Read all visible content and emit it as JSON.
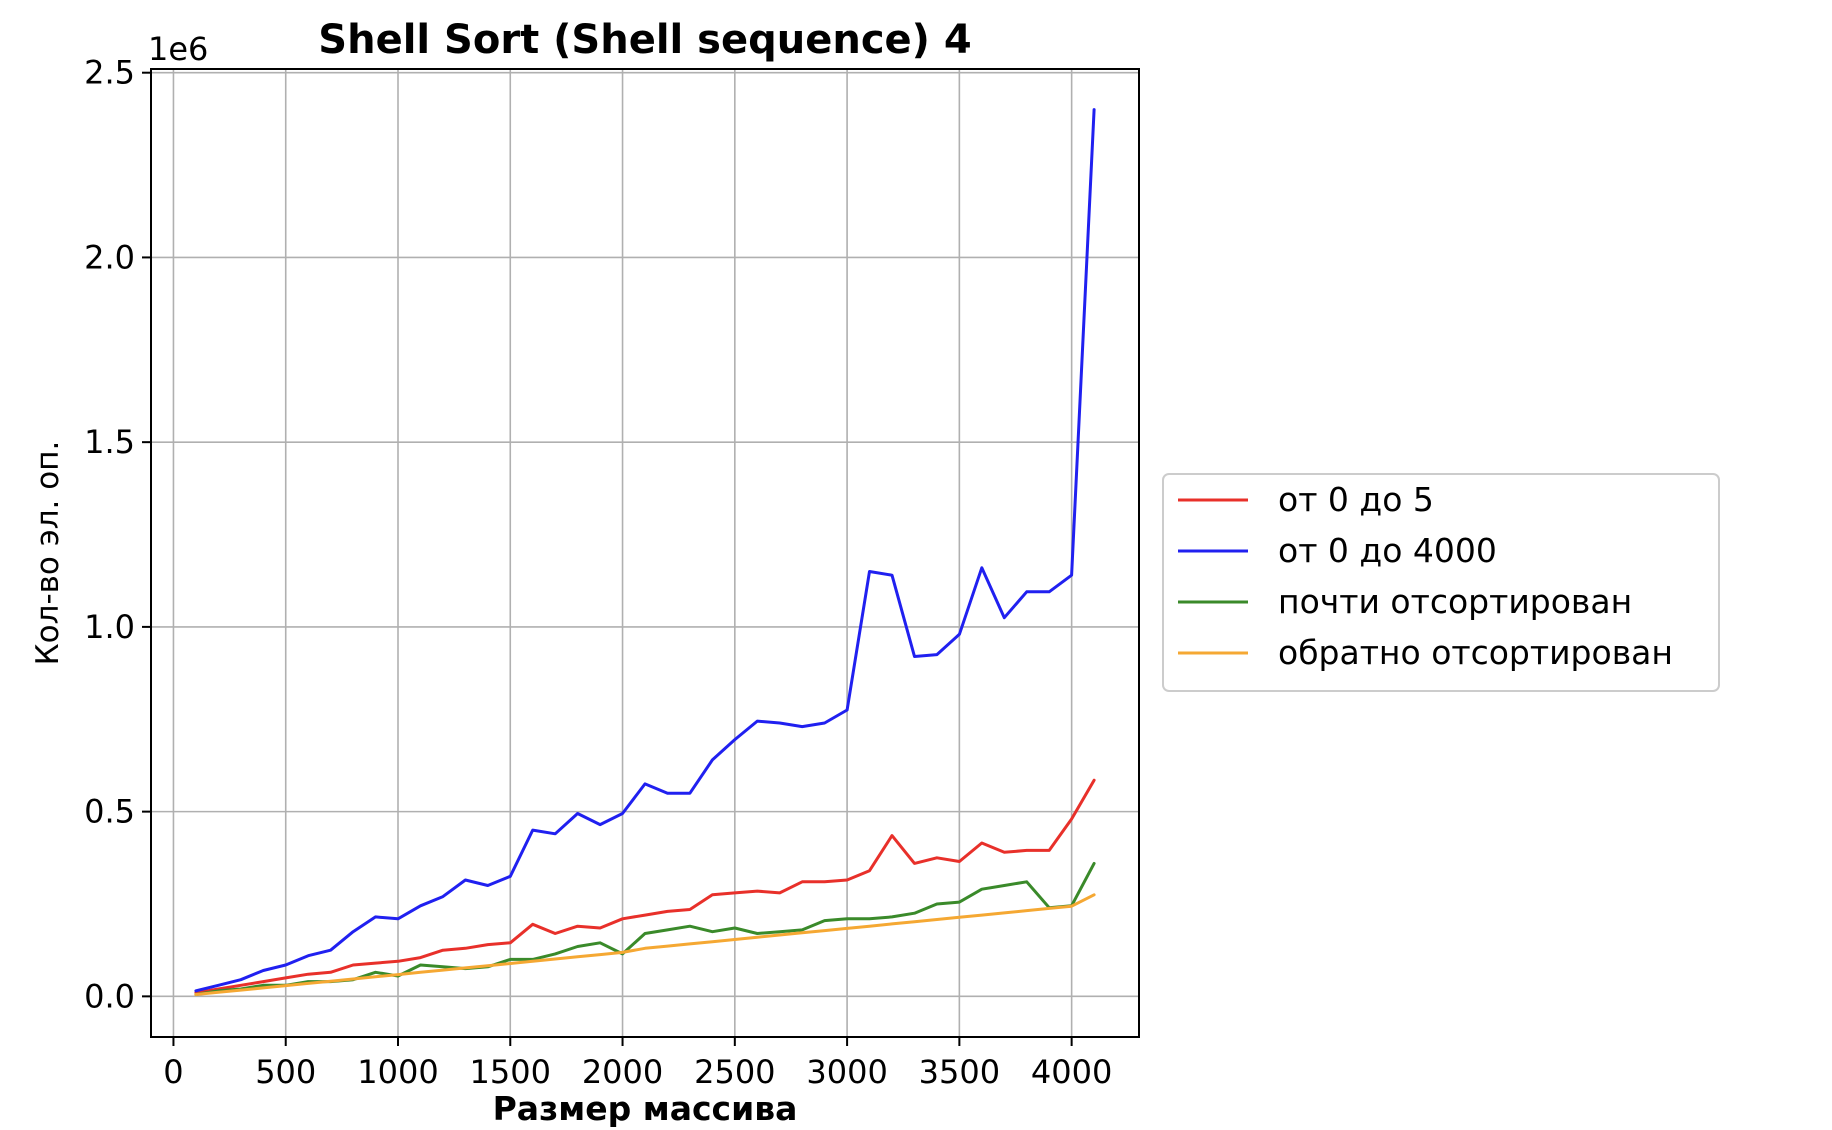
{
  "chart_data": {
    "type": "line",
    "title": "Shell Sort (Shell sequence) 4",
    "xlabel": "Размер массива",
    "ylabel": "Кол-во эл. оп.",
    "offset_text": "1e6",
    "xlim": [
      -100,
      4300
    ],
    "ylim": [
      -0.11,
      2.51
    ],
    "x_ticks": [
      0,
      500,
      1000,
      1500,
      2000,
      2500,
      3000,
      3500,
      4000
    ],
    "x_tick_labels": [
      "0",
      "500",
      "1000",
      "1500",
      "2000",
      "2500",
      "3000",
      "3500",
      "4000"
    ],
    "y_ticks": [
      0.0,
      0.5,
      1.0,
      1.5,
      2.0,
      2.5
    ],
    "y_tick_labels": [
      "0.0",
      "0.5",
      "1.0",
      "1.5",
      "2.0",
      "2.5"
    ],
    "grid": true,
    "legend_position": "outside-right",
    "x": [
      100,
      200,
      300,
      400,
      500,
      600,
      700,
      800,
      900,
      1000,
      1100,
      1200,
      1300,
      1400,
      1500,
      1600,
      1700,
      1800,
      1900,
      2000,
      2100,
      2200,
      2300,
      2400,
      2500,
      2600,
      2700,
      2800,
      2900,
      3000,
      3100,
      3200,
      3300,
      3400,
      3500,
      3600,
      3700,
      3800,
      3900,
      4000,
      4100
    ],
    "series": [
      {
        "name": "от 0 до 5",
        "color": "#e8302a",
        "values": [
          0.01,
          0.02,
          0.03,
          0.04,
          0.05,
          0.06,
          0.065,
          0.085,
          0.09,
          0.095,
          0.105,
          0.125,
          0.13,
          0.14,
          0.145,
          0.195,
          0.17,
          0.19,
          0.185,
          0.21,
          0.22,
          0.23,
          0.235,
          0.275,
          0.28,
          0.285,
          0.28,
          0.31,
          0.31,
          0.315,
          0.34,
          0.435,
          0.36,
          0.375,
          0.365,
          0.415,
          0.39,
          0.395,
          0.395,
          0.48,
          0.585
        ]
      },
      {
        "name": "от 0 до 4000",
        "color": "#2020f0",
        "values": [
          0.015,
          0.03,
          0.045,
          0.07,
          0.085,
          0.11,
          0.125,
          0.175,
          0.215,
          0.21,
          0.245,
          0.27,
          0.315,
          0.3,
          0.325,
          0.45,
          0.44,
          0.495,
          0.465,
          0.495,
          0.575,
          0.55,
          0.55,
          0.64,
          0.695,
          0.745,
          0.74,
          0.73,
          0.74,
          0.775,
          1.15,
          1.14,
          0.92,
          0.925,
          0.98,
          1.16,
          1.025,
          1.095,
          1.095,
          1.14,
          2.4
        ]
      },
      {
        "name": "почти отсортирован",
        "color": "#3a8a2a",
        "values": [
          0.005,
          0.015,
          0.02,
          0.03,
          0.03,
          0.04,
          0.04,
          0.045,
          0.065,
          0.055,
          0.085,
          0.08,
          0.075,
          0.08,
          0.1,
          0.1,
          0.115,
          0.135,
          0.145,
          0.115,
          0.17,
          0.18,
          0.19,
          0.175,
          0.185,
          0.17,
          0.175,
          0.18,
          0.205,
          0.21,
          0.21,
          0.215,
          0.225,
          0.25,
          0.255,
          0.29,
          0.3,
          0.31,
          0.24,
          0.245,
          0.36
        ]
      },
      {
        "name": "обратно отсортирован",
        "color": "#f5a833",
        "values": [
          0.005,
          0.011,
          0.017,
          0.023,
          0.029,
          0.035,
          0.041,
          0.047,
          0.053,
          0.059,
          0.065,
          0.071,
          0.077,
          0.083,
          0.089,
          0.095,
          0.101,
          0.107,
          0.113,
          0.119,
          0.13,
          0.136,
          0.142,
          0.148,
          0.154,
          0.16,
          0.166,
          0.172,
          0.178,
          0.184,
          0.19,
          0.196,
          0.202,
          0.208,
          0.214,
          0.22,
          0.226,
          0.232,
          0.238,
          0.244,
          0.275
        ]
      }
    ]
  }
}
